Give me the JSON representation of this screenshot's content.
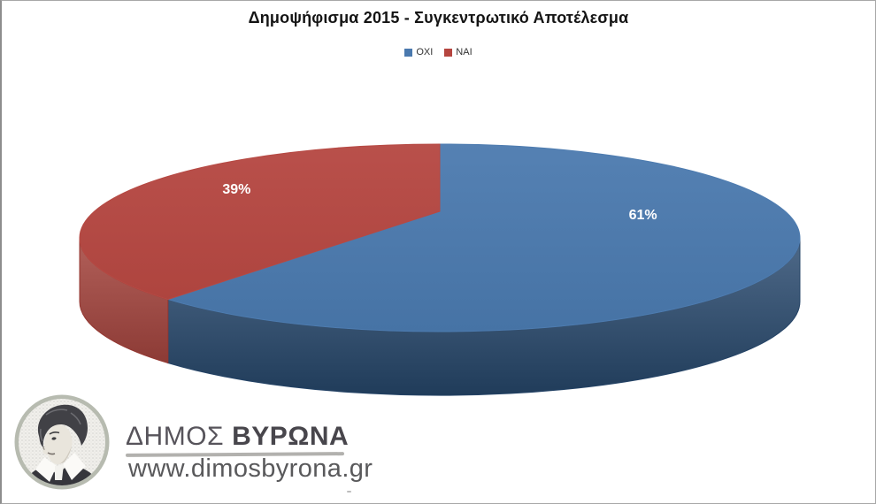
{
  "title": "Δημοψήφισμα 2015 - Συγκεντρωτικό Αποτέλεσμα",
  "chart_data": {
    "type": "pie",
    "style": "3d",
    "title": "Δημοψήφισμα 2015 - Συγκεντρωτικό Αποτέλεσμα",
    "categories": [
      "ΟΧΙ",
      "ΝΑΙ"
    ],
    "values": [
      61,
      39
    ],
    "series": [
      {
        "name": "ΟΧΙ",
        "value": 61,
        "label": "61%",
        "color": "#4a79ae",
        "side_color": "#26476b"
      },
      {
        "name": "ΝΑΙ",
        "value": 39,
        "label": "39%",
        "color": "#b5453f",
        "side_color": "#9c3a34"
      }
    ],
    "start_angle_deg": 0,
    "direction": "clockwise",
    "legend_position": "top",
    "labels_visible": true,
    "label_color": "#ffffff"
  },
  "legend": {
    "items": [
      {
        "label": "ΟΧΙ",
        "color": "#4a79ae"
      },
      {
        "label": "ΝΑΙ",
        "color": "#b5453f"
      }
    ]
  },
  "logo": {
    "org_prefix": "ΔΗΜΟΣ",
    "org_suffix": "ΒΥΡΩΝΑ",
    "website": "www.dimosbyrona.gr"
  }
}
